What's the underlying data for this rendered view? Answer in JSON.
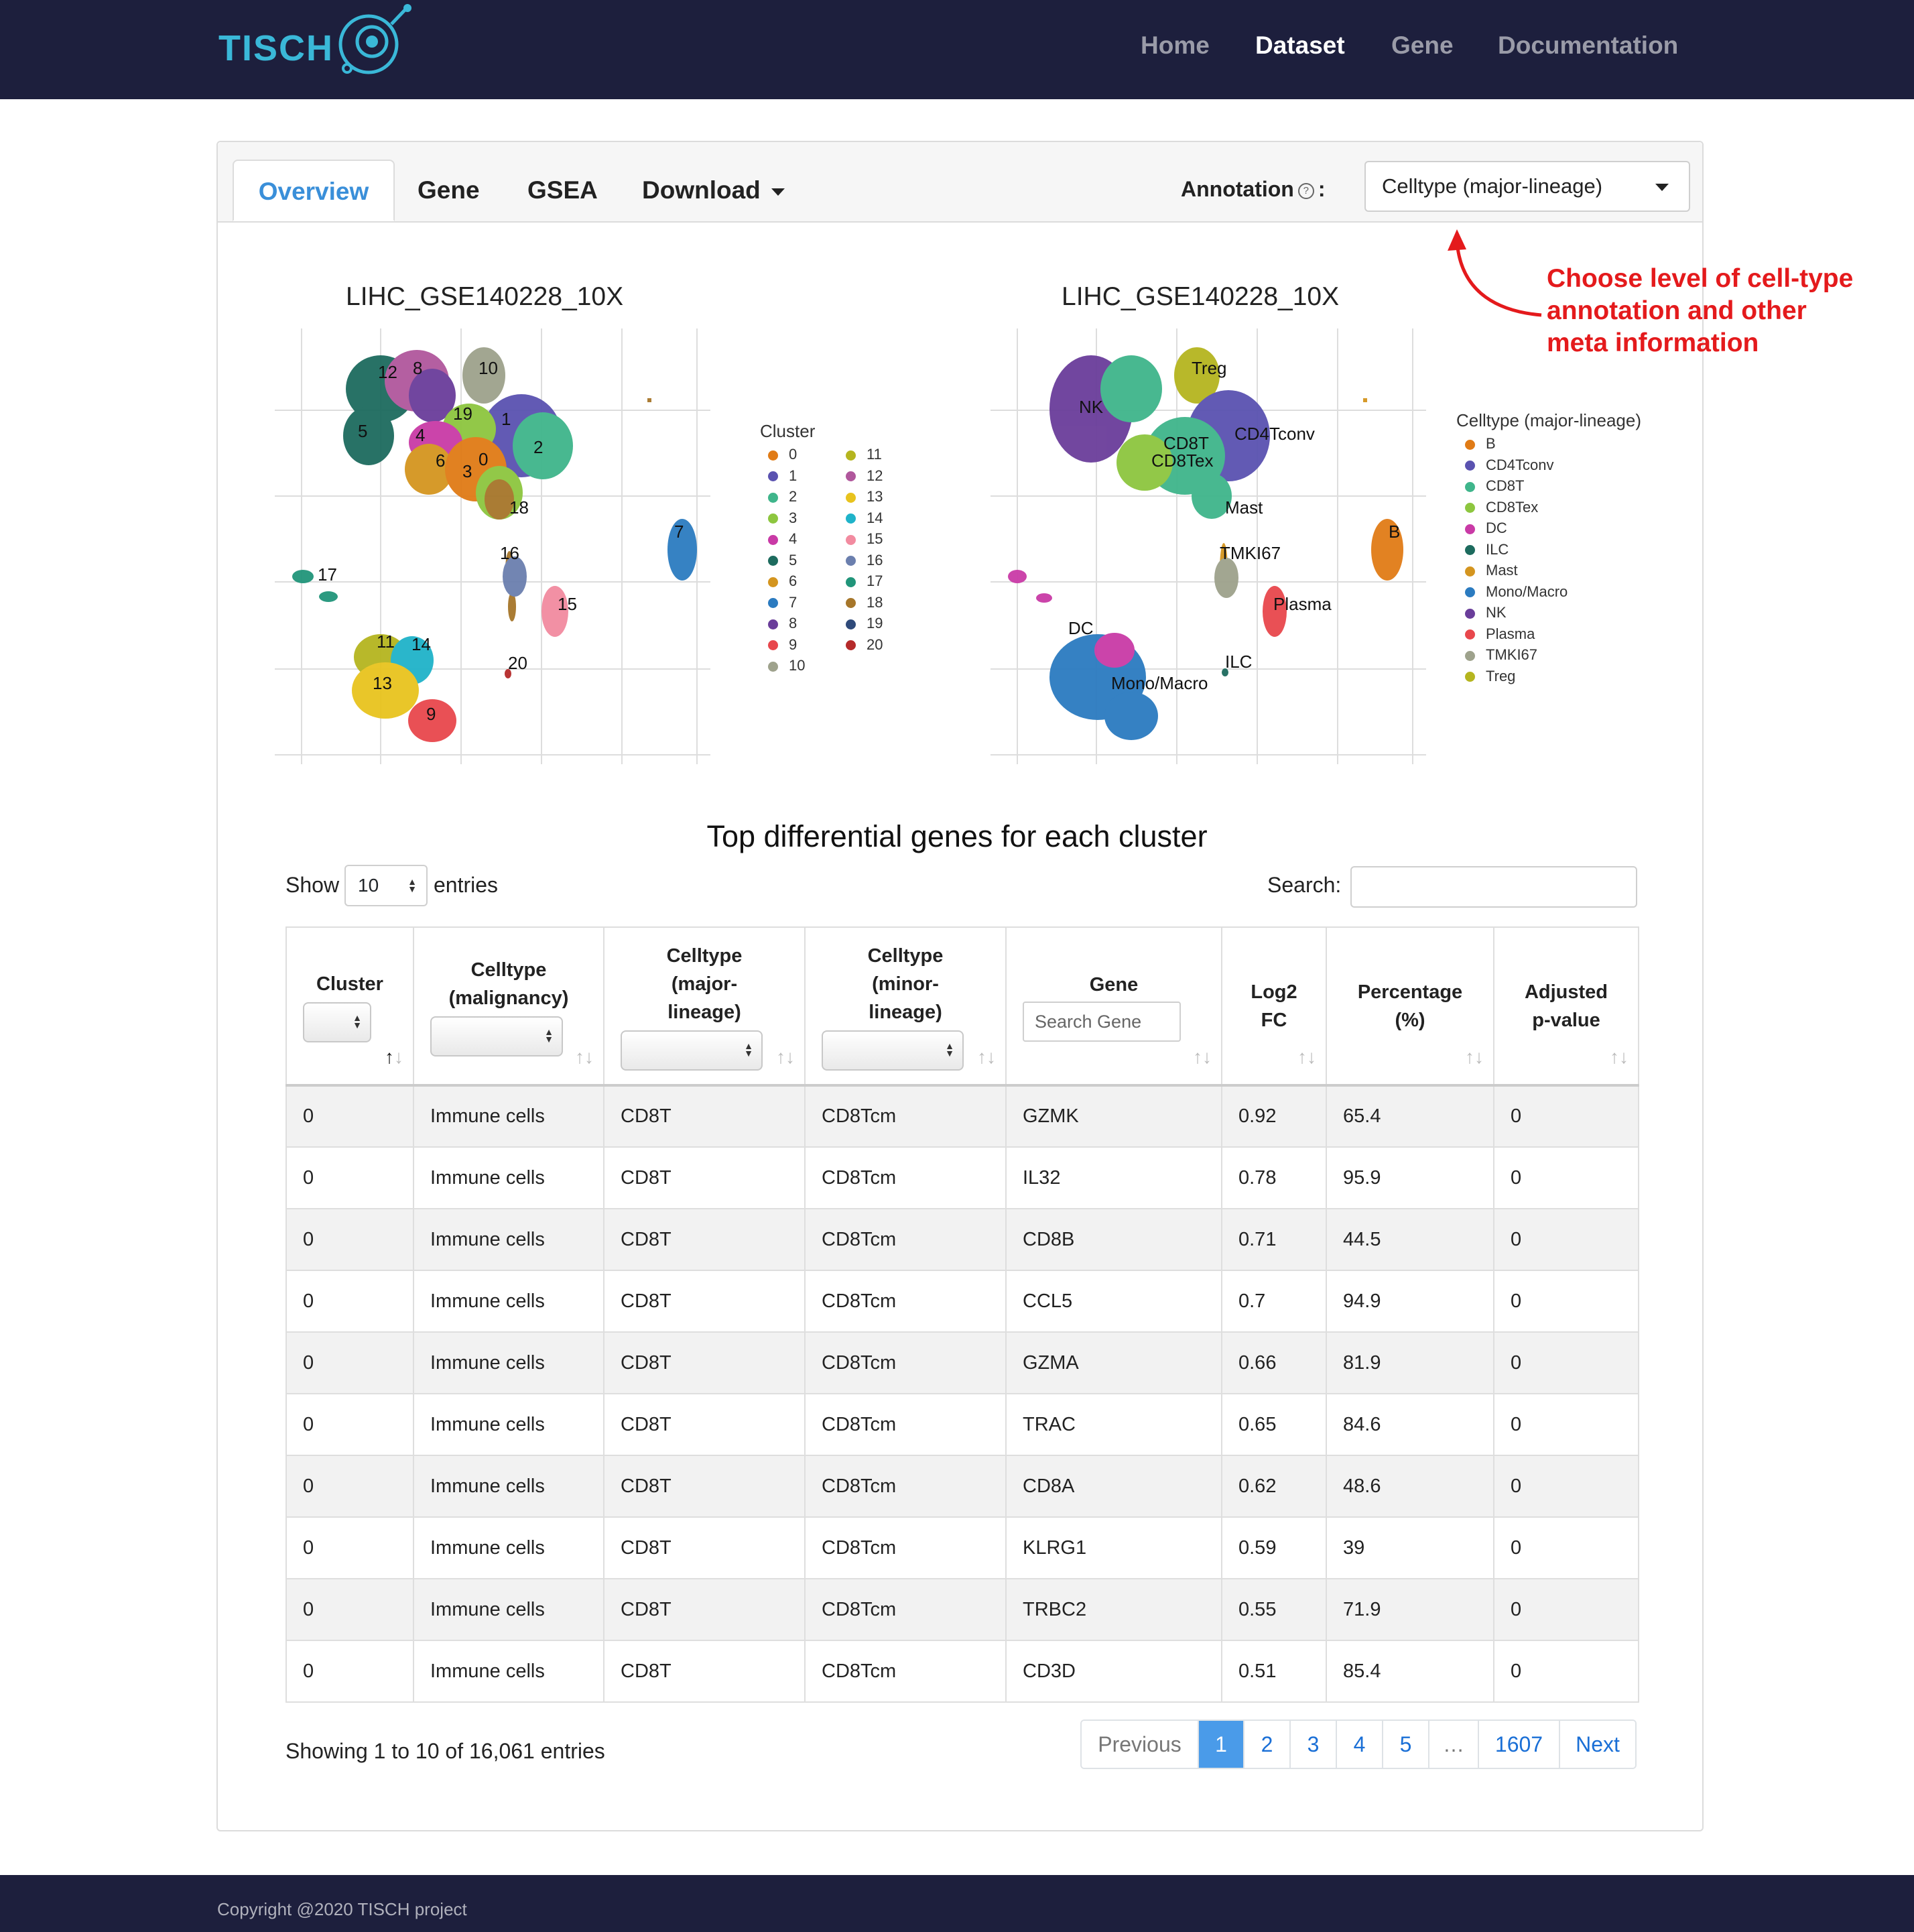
{
  "brand": "TISCH",
  "nav": {
    "home": "Home",
    "dataset": "Dataset",
    "gene": "Gene",
    "documentation": "Documentation"
  },
  "tabs": {
    "overview": "Overview",
    "gene": "Gene",
    "gsea": "GSEA",
    "download": "Download"
  },
  "annotation": {
    "label": "Annotation",
    "help": "?",
    "colon": ":",
    "selected": "Celltype (major-lineage)"
  },
  "callout": {
    "line1": "Choose level of cell-type",
    "line2": "annotation and other",
    "line3": "meta information"
  },
  "plot_left": {
    "title": "LIHC_GSE140228_10X",
    "legend_title": "Cluster",
    "legend": [
      {
        "label": "0",
        "color": "#e07b16"
      },
      {
        "label": "1",
        "color": "#5a52b0"
      },
      {
        "label": "2",
        "color": "#3fb58b"
      },
      {
        "label": "3",
        "color": "#8dc63f"
      },
      {
        "label": "4",
        "color": "#c93aa6"
      },
      {
        "label": "5",
        "color": "#1d6b5e"
      },
      {
        "label": "6",
        "color": "#d4951f"
      },
      {
        "label": "7",
        "color": "#2b7bc0"
      },
      {
        "label": "8",
        "color": "#6a3d9a"
      },
      {
        "label": "9",
        "color": "#e8474c"
      },
      {
        "label": "10",
        "color": "#9ea28c"
      },
      {
        "label": "11",
        "color": "#b5b51f"
      },
      {
        "label": "12",
        "color": "#b0579c"
      },
      {
        "label": "13",
        "color": "#e8c31e"
      },
      {
        "label": "14",
        "color": "#1fb3c9"
      },
      {
        "label": "15",
        "color": "#f28ba0"
      },
      {
        "label": "16",
        "color": "#6b7fae"
      },
      {
        "label": "17",
        "color": "#21957a"
      },
      {
        "label": "18",
        "color": "#a6762a"
      },
      {
        "label": "19",
        "color": "#2f4a7a"
      },
      {
        "label": "20",
        "color": "#b52a2a"
      }
    ],
    "labels": [
      "12",
      "8",
      "10",
      "19",
      "1",
      "5",
      "4",
      "6",
      "3",
      "0",
      "2",
      "18",
      "7",
      "16",
      "17",
      "15",
      "11",
      "14",
      "13",
      "20",
      "9"
    ]
  },
  "plot_right": {
    "title": "LIHC_GSE140228_10X",
    "legend_title": "Celltype (major-lineage)",
    "legend": [
      {
        "label": "B",
        "color": "#e07b16"
      },
      {
        "label": "CD4Tconv",
        "color": "#5a52b0"
      },
      {
        "label": "CD8T",
        "color": "#3fb58b"
      },
      {
        "label": "CD8Tex",
        "color": "#8dc63f"
      },
      {
        "label": "DC",
        "color": "#c93aa6"
      },
      {
        "label": "ILC",
        "color": "#1d6b5e"
      },
      {
        "label": "Mast",
        "color": "#d4951f"
      },
      {
        "label": "Mono/Macro",
        "color": "#2b7bc0"
      },
      {
        "label": "NK",
        "color": "#6a3d9a"
      },
      {
        "label": "Plasma",
        "color": "#e8474c"
      },
      {
        "label": "TMKI67",
        "color": "#9ea28c"
      },
      {
        "label": "Treg",
        "color": "#b5b51f"
      }
    ],
    "labels": [
      "Treg",
      "NK",
      "CD8T",
      "CD4Tconv",
      "CD8Tex",
      "Mast",
      "B",
      "TMKI67",
      "Plasma",
      "DC",
      "ILC",
      "Mono/Macro"
    ]
  },
  "table": {
    "title": "Top differential genes for each cluster",
    "show_label": "Show",
    "entries_label": "entries",
    "page_length": "10",
    "search_label": "Search:",
    "search_value": "",
    "headers": {
      "cluster": "Cluster",
      "malig1": "Celltype",
      "malig2": "(malignancy)",
      "major1": "Celltype",
      "major2": "(major-",
      "major3": "lineage)",
      "minor1": "Celltype",
      "minor2": "(minor-",
      "minor3": "lineage)",
      "gene": "Gene",
      "gene_placeholder": "Search Gene",
      "log1": "Log2",
      "log2": "FC",
      "pct1": "Percentage",
      "pct2": "(%)",
      "adj1": "Adjusted",
      "adj2": "p-value"
    },
    "rows": [
      [
        "0",
        "Immune cells",
        "CD8T",
        "CD8Tcm",
        "GZMK",
        "0.92",
        "65.4",
        "0"
      ],
      [
        "0",
        "Immune cells",
        "CD8T",
        "CD8Tcm",
        "IL32",
        "0.78",
        "95.9",
        "0"
      ],
      [
        "0",
        "Immune cells",
        "CD8T",
        "CD8Tcm",
        "CD8B",
        "0.71",
        "44.5",
        "0"
      ],
      [
        "0",
        "Immune cells",
        "CD8T",
        "CD8Tcm",
        "CCL5",
        "0.7",
        "94.9",
        "0"
      ],
      [
        "0",
        "Immune cells",
        "CD8T",
        "CD8Tcm",
        "GZMA",
        "0.66",
        "81.9",
        "0"
      ],
      [
        "0",
        "Immune cells",
        "CD8T",
        "CD8Tcm",
        "TRAC",
        "0.65",
        "84.6",
        "0"
      ],
      [
        "0",
        "Immune cells",
        "CD8T",
        "CD8Tcm",
        "CD8A",
        "0.62",
        "48.6",
        "0"
      ],
      [
        "0",
        "Immune cells",
        "CD8T",
        "CD8Tcm",
        "KLRG1",
        "0.59",
        "39",
        "0"
      ],
      [
        "0",
        "Immune cells",
        "CD8T",
        "CD8Tcm",
        "TRBC2",
        "0.55",
        "71.9",
        "0"
      ],
      [
        "0",
        "Immune cells",
        "CD8T",
        "CD8Tcm",
        "CD3D",
        "0.51",
        "85.4",
        "0"
      ]
    ],
    "info": "Showing 1 to 10 of 16,061 entries",
    "pagination": {
      "prev": "Previous",
      "p1": "1",
      "p2": "2",
      "p3": "3",
      "p4": "4",
      "p5": "5",
      "ellipsis": "…",
      "last": "1607",
      "next": "Next"
    }
  },
  "footer": {
    "copyright": "Copyright @2020 TISCH project"
  }
}
